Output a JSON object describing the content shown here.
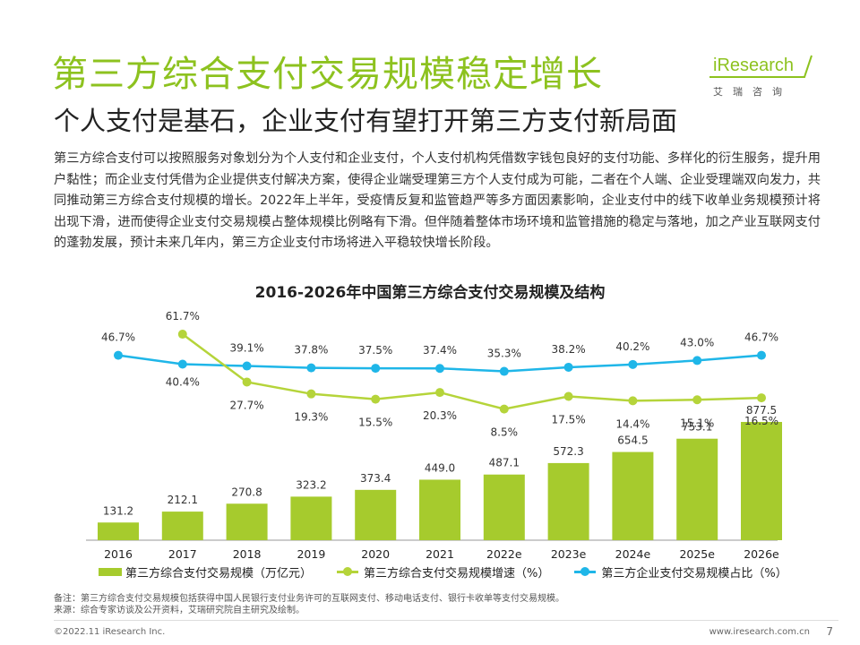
{
  "header": {
    "title": "第三方综合支付交易规模稳定增长",
    "subtitle": "个人支付是基石，企业支付有望打开第三方支付新局面"
  },
  "logo": {
    "brand": "iResearch",
    "cn": "艾瑞咨询"
  },
  "intro": "第三方综合支付可以按照服务对象划分为个人支付和企业支付，个人支付机构凭借数字钱包良好的支付功能、多样化的衍生服务，提升用户黏性；而企业支付凭借为企业提供支付解决方案，使得企业端受理第三方个人支付成为可能，二者在个人端、企业受理端双向发力，共同推动第三方综合支付规模的增长。2022年上半年，受疫情反复和监管趋严等多方面因素影响，企业支付中的线下收单业务规模预计将出现下滑，进而使得企业支付交易规模占整体规模比例略有下滑。但伴随着整体市场环境和监管措施的稳定与落地，加之产业互联网支付的蓬勃发展，预计未来几年内，第三方企业支付市场将进入平稳较快增长阶段。",
  "colors": {
    "accent": "#8dc21f",
    "bar": "#a6cb2d",
    "growth_line": "#b5d43a",
    "share_line": "#1fb6e8"
  },
  "chart_data": {
    "type": "bar+line",
    "title": "2016-2026年中国第三方综合支付交易规模及结构",
    "categories": [
      "2016",
      "2017",
      "2018",
      "2019",
      "2020",
      "2021",
      "2022e",
      "2023e",
      "2024e",
      "2025e",
      "2026e"
    ],
    "series": [
      {
        "name": "第三方综合支付交易规模（万亿元）",
        "type": "bar",
        "values": [
          131.2,
          212.1,
          270.8,
          323.2,
          373.4,
          449.0,
          487.1,
          572.3,
          654.5,
          753.1,
          877.5
        ],
        "labels": [
          "131.2",
          "212.1",
          "270.8",
          "323.2",
          "373.4",
          "449.0",
          "487.1",
          "572.3",
          "654.5",
          "753.1",
          "877.5"
        ]
      },
      {
        "name": "第三方综合支付交易规模增速（%）",
        "type": "line",
        "values": [
          null,
          61.7,
          27.7,
          19.3,
          15.5,
          20.3,
          8.5,
          17.5,
          14.4,
          15.1,
          16.5
        ],
        "labels": [
          "",
          "61.7%",
          "27.7%",
          "19.3%",
          "15.5%",
          "20.3%",
          "8.5%",
          "17.5%",
          "14.4%",
          "15.1%",
          "16.5%"
        ]
      },
      {
        "name": "第三方企业支付交易规模占比（%）",
        "type": "line",
        "values": [
          46.7,
          40.4,
          39.1,
          37.8,
          37.5,
          37.4,
          35.3,
          38.2,
          40.2,
          43.0,
          46.7
        ],
        "labels": [
          "46.7%",
          "40.4%",
          "39.1%",
          "37.8%",
          "37.5%",
          "37.4%",
          "35.3%",
          "38.2%",
          "40.2%",
          "43.0%",
          "46.7%"
        ]
      }
    ]
  },
  "notes": {
    "note": "备注：第三方综合支付交易规模包括获得中国人民银行支付业务许可的互联网支付、移动电话支付、银行卡收单等支付交易规模。",
    "source": "来源：综合专家访谈及公开资料，艾瑞研究院自主研究及绘制。"
  },
  "footer": {
    "copyright": "©2022.11 iResearch Inc.",
    "website": "www.iresearch.com.cn",
    "page": "7"
  }
}
